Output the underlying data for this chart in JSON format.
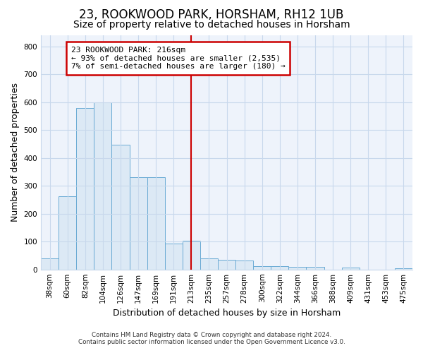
{
  "title": "23, ROOKWOOD PARK, HORSHAM, RH12 1UB",
  "subtitle": "Size of property relative to detached houses in Horsham",
  "xlabel": "Distribution of detached houses by size in Horsham",
  "ylabel": "Number of detached properties",
  "footnote1": "Contains HM Land Registry data © Crown copyright and database right 2024.",
  "footnote2": "Contains public sector information licensed under the Open Government Licence v3.0.",
  "bar_labels": [
    "38sqm",
    "60sqm",
    "82sqm",
    "104sqm",
    "126sqm",
    "147sqm",
    "169sqm",
    "191sqm",
    "213sqm",
    "235sqm",
    "257sqm",
    "278sqm",
    "300sqm",
    "322sqm",
    "344sqm",
    "366sqm",
    "388sqm",
    "409sqm",
    "431sqm",
    "453sqm",
    "475sqm"
  ],
  "bar_values": [
    40,
    262,
    580,
    600,
    447,
    330,
    330,
    93,
    103,
    40,
    35,
    33,
    13,
    13,
    10,
    10,
    0,
    8,
    0,
    0,
    5
  ],
  "bar_color": "#dce9f5",
  "bar_edge_color": "#6aaad4",
  "highlight_index": 8,
  "property_label": "23 ROOKWOOD PARK: 216sqm",
  "annotation_line1": "← 93% of detached houses are smaller (2,535)",
  "annotation_line2": "7% of semi-detached houses are larger (180) →",
  "annotation_box_color": "#ffffff",
  "annotation_box_edge": "#cc0000",
  "vline_color": "#cc0000",
  "ylim": [
    0,
    840
  ],
  "yticks": [
    0,
    100,
    200,
    300,
    400,
    500,
    600,
    700,
    800
  ],
  "grid_color": "#c8d8ec",
  "bg_color": "#ffffff",
  "plot_bg_color": "#eef3fb",
  "title_fontsize": 12,
  "subtitle_fontsize": 10,
  "axis_label_fontsize": 9,
  "tick_fontsize": 7.5
}
